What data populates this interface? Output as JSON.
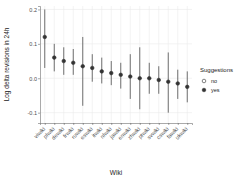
{
  "chart_data": {
    "type": "pointrange",
    "x_label": "Wiki",
    "y_label": "Log delta revisions in 24h",
    "legend_title": "Suggestions",
    "categories": [
      "viwiki",
      "plwiki",
      "dewiki",
      "frwiki",
      "ruwiki",
      "eswiki",
      "itwiki",
      "nlwiki",
      "jawiki",
      "enwiki",
      "zhwiki",
      "ptwiki",
      "svwiki",
      "cswiki",
      "fawiki",
      "ukwiki"
    ],
    "series": [
      {
        "name": "no",
        "marker": "open",
        "color": "#333333",
        "values": [
          null,
          null,
          null,
          null,
          null,
          null,
          null,
          null,
          null,
          null,
          null,
          null,
          null,
          null,
          null,
          null
        ],
        "lower": [
          null,
          null,
          null,
          null,
          null,
          null,
          null,
          null,
          null,
          null,
          null,
          null,
          null,
          null,
          null,
          null
        ],
        "upper": [
          null,
          null,
          null,
          null,
          null,
          null,
          null,
          null,
          null,
          null,
          null,
          null,
          null,
          null,
          null,
          null
        ]
      },
      {
        "name": "yes",
        "marker": "filled",
        "color": "#333333",
        "values": [
          0.12,
          0.06,
          0.05,
          0.045,
          0.035,
          0.03,
          0.02,
          0.015,
          0.01,
          0.005,
          0.0,
          0.0,
          -0.005,
          -0.01,
          -0.015,
          -0.025
        ],
        "lower": [
          0.03,
          0.02,
          0.01,
          0.01,
          -0.08,
          -0.01,
          -0.015,
          -0.02,
          -0.03,
          -0.06,
          -0.09,
          -0.045,
          -0.045,
          -0.1,
          -0.06,
          -0.07
        ],
        "upper": [
          0.2,
          0.1,
          0.09,
          0.085,
          0.12,
          0.07,
          0.06,
          0.05,
          0.045,
          0.07,
          0.09,
          0.045,
          0.035,
          0.075,
          0.025,
          0.02
        ]
      }
    ],
    "ylim": [
      -0.13,
      0.21
    ],
    "yticks": [
      -0.1,
      {
        "value": 0,
        "label": "0.0"
      },
      0.1,
      0.2
    ],
    "grid": true,
    "legend": "right"
  }
}
